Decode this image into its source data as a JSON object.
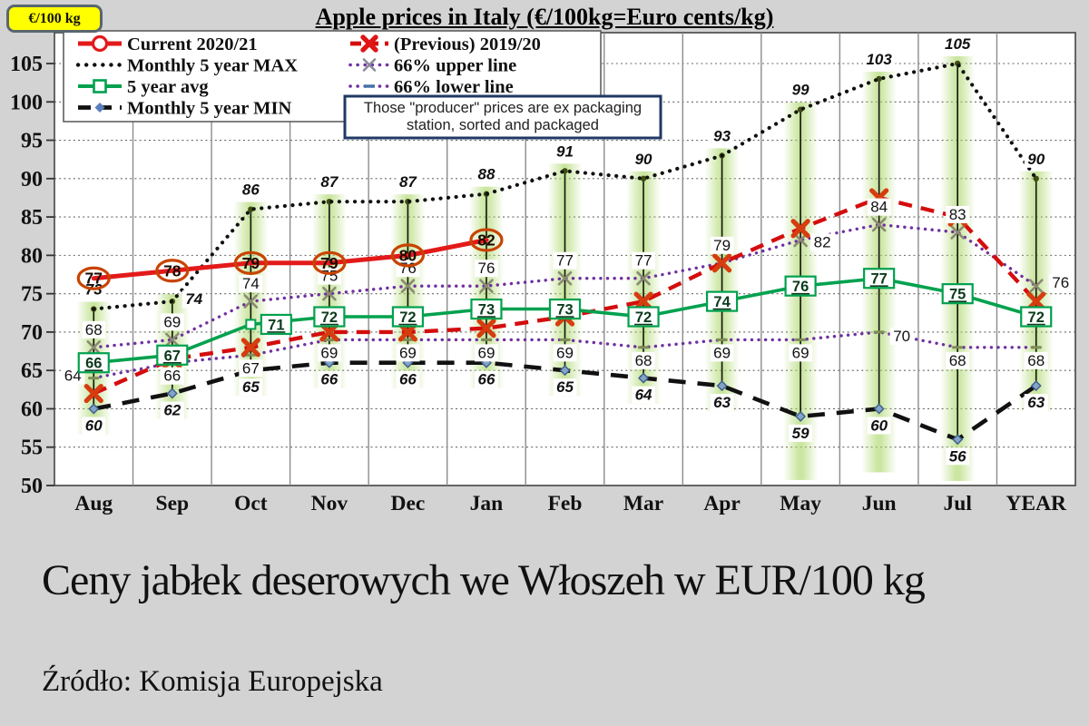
{
  "header": {
    "unit_badge": "€/100 kg",
    "title": "Apple prices in Italy (€/100kg=Euro cents/kg)"
  },
  "note": {
    "line1": "Those \"producer\" prices are ex packaging",
    "line2": "station, sorted and packaged"
  },
  "captions": {
    "title": "Ceny jabłek deserowych we Włoszeh w EUR/100 kg",
    "source": "Źródło: Komisja Europejska"
  },
  "chart_data": {
    "type": "line",
    "title": "Apple prices in Italy (€/100kg=Euro cents/kg)",
    "categories": [
      "Aug",
      "Sep",
      "Oct",
      "Nov",
      "Dec",
      "Jan",
      "Feb",
      "Mar",
      "Apr",
      "May",
      "Jun",
      "Jul",
      "YEAR"
    ],
    "ylim": [
      50,
      110
    ],
    "yticks": [
      50,
      55,
      60,
      65,
      70,
      75,
      80,
      85,
      90,
      95,
      100,
      105
    ],
    "grid": true,
    "legend_position": "top-left",
    "series": [
      {
        "role": "current",
        "name": "Current 2020/21",
        "color": "#e31a1a",
        "marker": "circle-label",
        "labels_shown": true,
        "values": [
          77,
          78,
          79,
          79,
          80,
          82,
          null,
          null,
          null,
          null,
          null,
          null,
          null
        ]
      },
      {
        "role": "previous",
        "name": "(Previous) 2019/20",
        "color": "#d40d0d",
        "marker": "x",
        "marker_color": "#d63d0e",
        "labels_shown": false,
        "values": [
          62,
          66.5,
          68,
          70,
          70,
          70.5,
          72,
          74,
          79,
          83.5,
          87.5,
          85,
          74
        ]
      },
      {
        "role": "max",
        "name": "Monthly 5 year MAX",
        "color": "#111111",
        "marker": "dot",
        "labels_shown": true,
        "values": [
          73,
          74,
          86,
          87,
          87,
          88,
          91,
          90,
          93,
          99,
          103,
          105,
          90
        ]
      },
      {
        "role": "upper",
        "name": "66% upper line",
        "color": "#7030a0",
        "marker": "x",
        "marker_color": "#8a8a72",
        "labels_shown": true,
        "values": [
          68,
          69,
          74,
          75,
          76,
          76,
          77,
          77,
          79,
          82,
          84,
          83,
          76
        ]
      },
      {
        "role": "avg",
        "name": "5 year avg",
        "color": "#00a14e",
        "marker": "square-label",
        "labels_shown": true,
        "values": [
          66,
          67,
          71,
          72,
          72,
          73,
          73,
          72,
          74,
          76,
          77,
          75,
          72
        ]
      },
      {
        "role": "lower",
        "name": "66% lower line",
        "color": "#7030a0",
        "marker": "dash",
        "marker_color": "#7d8d55",
        "labels_shown": true,
        "values": [
          64,
          66,
          67,
          69,
          69,
          69,
          69,
          68,
          69,
          69,
          70,
          68,
          68
        ]
      },
      {
        "role": "min",
        "name": "Monthly 5 year MIN",
        "color": "#111111",
        "marker": "diamond",
        "marker_color": "#85a3c8",
        "labels_shown": true,
        "values": [
          60,
          62,
          65,
          66,
          66,
          66,
          65,
          64,
          63,
          59,
          60,
          56,
          63
        ]
      }
    ]
  }
}
